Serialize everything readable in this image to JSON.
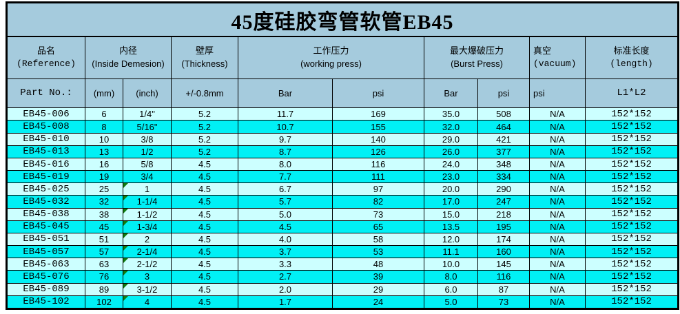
{
  "title": "45度硅胶弯管软管EB45",
  "colors": {
    "header_bg": "#a5cbdd",
    "row_light": "#ccffff",
    "row_cyan": "#00f0f5",
    "border": "#000000",
    "corner_triangle": "#107c10"
  },
  "table": {
    "headers": {
      "ref_zh": "品名",
      "ref_en": "(Reference)",
      "part_no": "Part No.:",
      "id_zh": "内径",
      "id_en": "(Inside Demesion)",
      "mm": "(mm)",
      "inch": "(inch)",
      "thick_zh": "壁厚",
      "thick_en": "(Thickness)",
      "tol": "+/-0.8mm",
      "wp_zh": "工作压力",
      "wp_en": "(working press)",
      "wp_bar": "Bar",
      "wp_psi": "psi",
      "bp_zh": "最大爆破压力",
      "bp_en": "(Burst Press)",
      "bp_bar": "Bar",
      "bp_psi": "psi",
      "vac_zh": "真空",
      "vac_en": "(vacuum)",
      "vac_psi": "psi",
      "len_zh": "标准长度",
      "len_en": "(length)",
      "len_val": "L1*L2"
    },
    "rows": [
      {
        "cells": [
          "EB45-006",
          "6",
          "1/4\"",
          "5.2",
          "11.7",
          "169",
          "35.0",
          "508",
          "N/A",
          "152*152"
        ],
        "inch_marker": false
      },
      {
        "cells": [
          "EB45-008",
          "8",
          "5/16\"",
          "5.2",
          "10.7",
          "155",
          "32.0",
          "464",
          "N/A",
          "152*152"
        ],
        "inch_marker": false
      },
      {
        "cells": [
          "EB45-010",
          "10",
          "3/8",
          "5.2",
          "9.7",
          "140",
          "29.0",
          "421",
          "N/A",
          "152*152"
        ],
        "inch_marker": false
      },
      {
        "cells": [
          "EB45-013",
          "13",
          "1/2",
          "5.2",
          "8.7",
          "126",
          "26.0",
          "377",
          "N/A",
          "152*152"
        ],
        "inch_marker": false
      },
      {
        "cells": [
          "EB45-016",
          "16",
          "5/8",
          "4.5",
          "8.0",
          "116",
          "24.0",
          "348",
          "N/A",
          "152*152"
        ],
        "inch_marker": false
      },
      {
        "cells": [
          "EB45-019",
          "19",
          "3/4",
          "4.5",
          "7.7",
          "111",
          "23.0",
          "334",
          "N/A",
          "152*152"
        ],
        "inch_marker": false
      },
      {
        "cells": [
          "EB45-025",
          "25",
          "1",
          "4.5",
          "6.7",
          "97",
          "20.0",
          "290",
          "N/A",
          "152*152"
        ],
        "inch_marker": true
      },
      {
        "cells": [
          "EB45-032",
          "32",
          "1-1/4",
          "4.5",
          "5.7",
          "82",
          "17.0",
          "247",
          "N/A",
          "152*152"
        ],
        "inch_marker": true
      },
      {
        "cells": [
          "EB45-038",
          "38",
          "1-1/2",
          "4.5",
          "5.0",
          "73",
          "15.0",
          "218",
          "N/A",
          "152*152"
        ],
        "inch_marker": true
      },
      {
        "cells": [
          "EB45-045",
          "45",
          "1-3/4",
          "4.5",
          "4.5",
          "65",
          "13.5",
          "195",
          "N/A",
          "152*152"
        ],
        "inch_marker": true
      },
      {
        "cells": [
          "EB45-051",
          "51",
          "2",
          "4.5",
          "4.0",
          "58",
          "12.0",
          "174",
          "N/A",
          "152*152"
        ],
        "inch_marker": true
      },
      {
        "cells": [
          "EB45-057",
          "57",
          "2-1/4",
          "4.5",
          "3.7",
          "53",
          "11.1",
          "160",
          "N/A",
          "152*152"
        ],
        "inch_marker": true
      },
      {
        "cells": [
          "EB45-063",
          "63",
          "2-1/2",
          "4.5",
          "3.3",
          "48",
          "10.0",
          "145",
          "N/A",
          "152*152"
        ],
        "inch_marker": true
      },
      {
        "cells": [
          "EB45-076",
          "76",
          "3",
          "4.5",
          "2.7",
          "39",
          "8.0",
          "116",
          "N/A",
          "152*152"
        ],
        "inch_marker": true
      },
      {
        "cells": [
          "EB45-089",
          "89",
          "3-1/2",
          "4.5",
          "2.0",
          "29",
          "6.0",
          "87",
          "N/A",
          "152*152"
        ],
        "inch_marker": true
      },
      {
        "cells": [
          "EB45-102",
          "102",
          "4",
          "4.5",
          "1.7",
          "24",
          "5.0",
          "73",
          "N/A",
          "152*152"
        ],
        "inch_marker": true
      }
    ]
  }
}
